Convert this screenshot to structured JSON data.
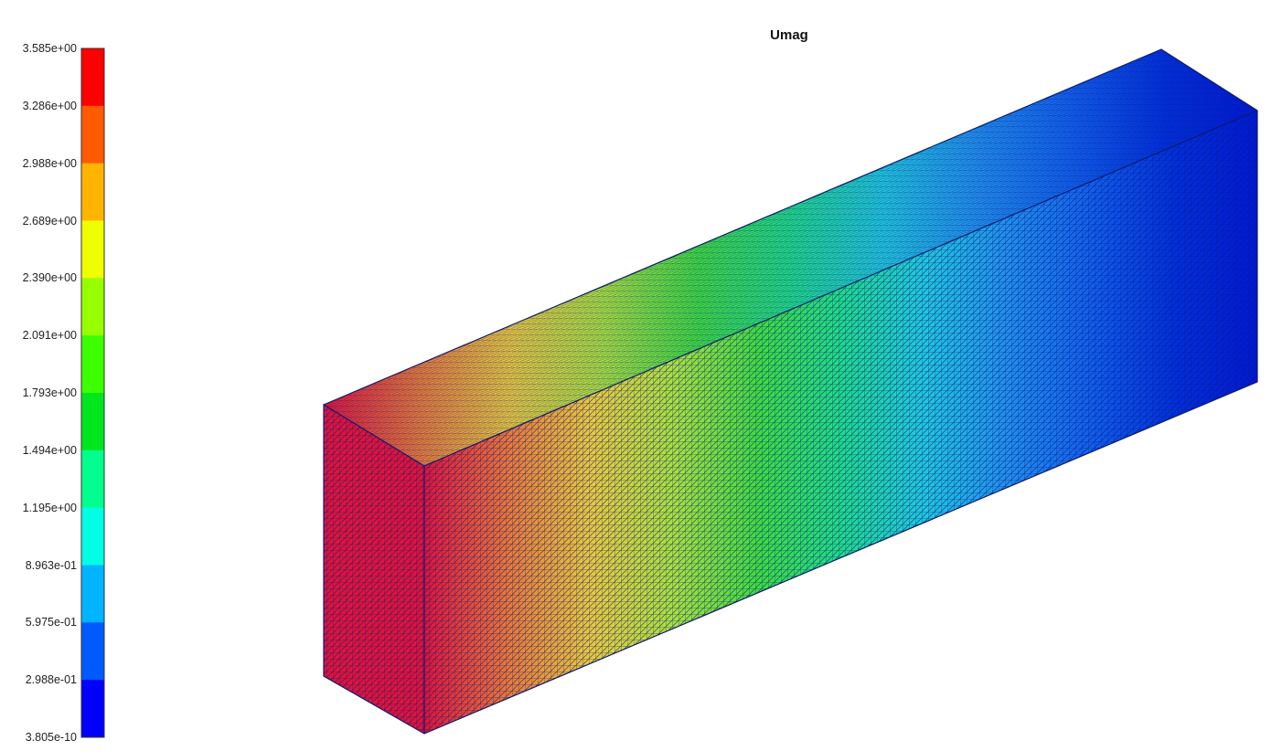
{
  "title": "Umag",
  "colorbar": {
    "tick_labels": [
      "3.585e+00",
      "3.286e+00",
      "2.988e+00",
      "2.689e+00",
      "2.390e+00",
      "2.091e+00",
      "1.793e+00",
      "1.494e+00",
      "1.195e+00",
      "8.963e-01",
      "5.975e-01",
      "2.988e-01",
      "3.805e-10"
    ],
    "colors_top_to_bottom": [
      "#ff0000",
      "#ff5a00",
      "#ffb400",
      "#f0ff00",
      "#96ff00",
      "#3cff00",
      "#00e61e",
      "#00ff8c",
      "#00ffe6",
      "#00b4ff",
      "#005aff",
      "#0000ff"
    ]
  },
  "mesh": {
    "edge_color": "#0d1a6e",
    "end_face_color": "#e0143c",
    "side_gradient_front_to_back": [
      "#e0143c",
      "#e8783a",
      "#e8c840",
      "#a8e040",
      "#40dc40",
      "#20dc88",
      "#20c8e0",
      "#2090f0",
      "#1060f0",
      "#0030e0",
      "#0018d8"
    ]
  }
}
